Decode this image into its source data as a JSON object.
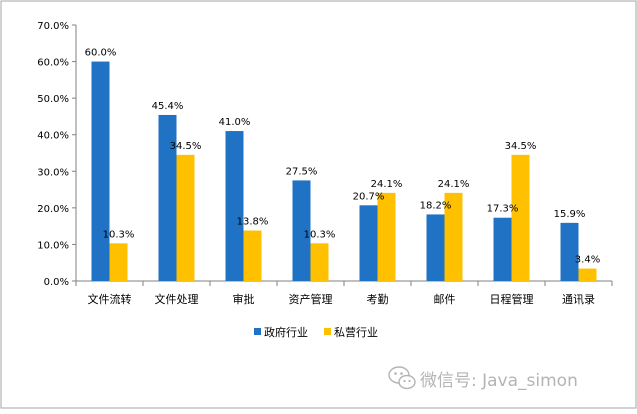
{
  "chart_data": {
    "type": "bar",
    "categories": [
      "文件流转",
      "文件处理",
      "审批",
      "资产管理",
      "考勤",
      "邮件",
      "日程管理",
      "通讯录"
    ],
    "series": [
      {
        "name": "政府行业",
        "values": [
          60.0,
          45.4,
          41.0,
          27.5,
          20.7,
          18.2,
          17.3,
          15.9
        ],
        "labels": [
          "60.0%",
          "45.4%",
          "41.0%",
          "27.5%",
          "20.7%",
          "18.2%",
          "17.3%",
          "15.9%"
        ],
        "color": "#1f72c4"
      },
      {
        "name": "私营行业",
        "values": [
          10.3,
          34.5,
          13.8,
          10.3,
          24.1,
          24.1,
          34.5,
          3.4
        ],
        "labels": [
          "10.3%",
          "34.5%",
          "13.8%",
          "10.3%",
          "24.1%",
          "24.1%",
          "34.5%",
          "3.4%"
        ],
        "color": "#ffc000"
      }
    ],
    "ylim": [
      0,
      70
    ],
    "yticks": [
      "0.0%",
      "10.0%",
      "20.0%",
      "30.0%",
      "40.0%",
      "50.0%",
      "60.0%",
      "70.0%"
    ],
    "grid": false,
    "legend_position": "bottom"
  },
  "watermark": {
    "icon": "wechat-icon",
    "text": "微信号: Java_simon"
  },
  "colors": {
    "axis": "#808080",
    "text": "#000000",
    "watermark": "#b4b4b4",
    "frame": "#a6a6a6"
  }
}
